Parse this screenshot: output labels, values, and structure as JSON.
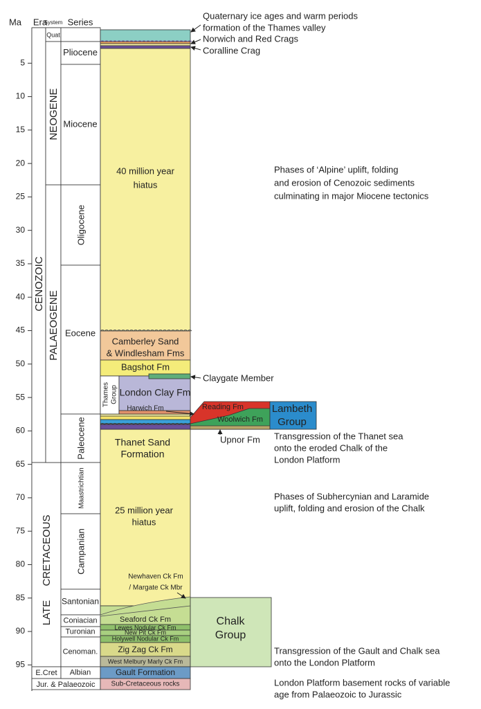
{
  "axis": {
    "title": "Ma",
    "ticks": [
      5,
      10,
      15,
      20,
      25,
      30,
      35,
      40,
      45,
      50,
      55,
      60,
      65,
      70,
      75,
      80,
      85,
      90,
      95
    ]
  },
  "headers": [
    "Era",
    "System",
    "Series"
  ],
  "eras": [
    "CENOZOIC",
    "CRETACEOUS",
    "LATE",
    "E.Cret",
    "Jur. & Palaeozoic"
  ],
  "systems": [
    "Quat",
    "NEOGENE",
    "PALAEOGENE"
  ],
  "series": [
    "Pliocene",
    "Miocene",
    "Oligocene",
    "Eocene",
    "Paleocene",
    "Maastrichtian",
    "Campanian",
    "Santonian",
    "Coniacian",
    "Turonian",
    "Cenoman.",
    "Albian"
  ],
  "thames_group": [
    "Thames",
    "Group"
  ],
  "units": [
    [
      "40 million year",
      "hiatus"
    ],
    [
      "Camberley Sand",
      "& Windlesham Fms"
    ],
    [
      "Bagshot Fm"
    ],
    [
      "London Clay Fm"
    ],
    [
      "Harwich Fm"
    ],
    [
      "Thanet Sand",
      "Formation"
    ],
    [
      "25 million year",
      "hiatus"
    ],
    [
      "Newhaven Ck Fm",
      "/ Margate Ck Mbr"
    ],
    [
      "Seaford Ck Fm"
    ],
    [
      "Lewes Nodular Ck Fm"
    ],
    [
      "New Pit Ck Fm"
    ],
    [
      "Holywell Nodular Ck Fm"
    ],
    [
      "Zig Zag Ck Fm"
    ],
    [
      "West Melbury Marly Ck Fm"
    ],
    [
      "Gault Formation"
    ],
    [
      "Sub-Cretaceous rocks"
    ]
  ],
  "groups": [
    [
      "Chalk",
      "Group"
    ],
    [
      "Reading Fm"
    ],
    [
      "Woolwich Fm"
    ],
    [
      "Lambeth",
      "Group"
    ]
  ],
  "annotations": [
    [
      "Quaternary ice ages and warm periods",
      "formation of the Thames valley"
    ],
    [
      "Norwich and Red Crags"
    ],
    [
      "Coralline Crag"
    ],
    [
      "Phases of ‘Alpine’ uplift, folding",
      "and erosion of Cenozoic sediments",
      "culminating in major Miocene tectonics"
    ],
    [
      "Claygate Member"
    ],
    [
      "Upnor Fm"
    ],
    [
      "Transgression of the Thanet sea",
      "onto the eroded Chalk of the",
      "London Platform"
    ],
    [
      "Phases of Subhercynian and Laramide",
      "uplift, folding and erosion of the Chalk"
    ],
    [
      "Transgression of the Gault and Chalk sea",
      "onto the London Platform"
    ],
    [
      "London Platform basement rocks of variable",
      "age from Palaeozoic to Jurassic"
    ]
  ]
}
